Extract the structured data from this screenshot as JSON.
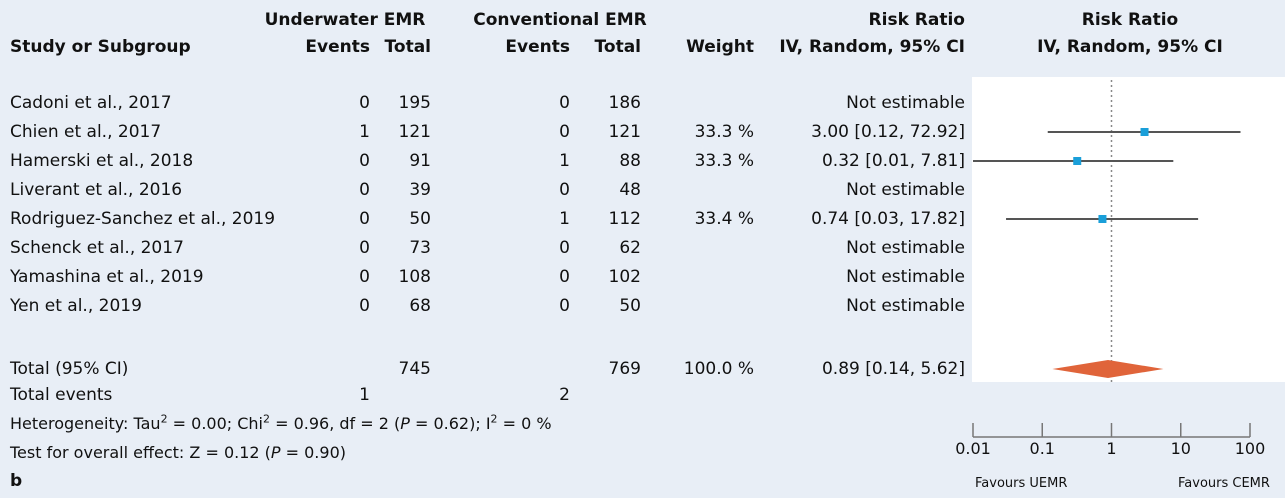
{
  "header": {
    "uemr_group": "Underwater EMR",
    "cemr_group": "Conventional EMR",
    "rr_title": "Risk Ratio",
    "rr_title2": "Risk Ratio",
    "study_col": "Study or Subgroup",
    "events1": "Events",
    "total1": "Total",
    "events2": "Events",
    "total2": "Total",
    "weight": "Weight",
    "rr_method": "IV, Random, 95% CI",
    "rr_method2": "IV, Random, 95% CI"
  },
  "studies": [
    {
      "name": "Cadoni et al., 2017",
      "e1": "0",
      "t1": "195",
      "e2": "0",
      "t2": "186",
      "weight": "",
      "rr": "Not estimable"
    },
    {
      "name": "Chien et al., 2017",
      "e1": "1",
      "t1": "121",
      "e2": "0",
      "t2": "121",
      "weight": "33.3 %",
      "rr": "3.00 [0.12, 72.92]"
    },
    {
      "name": "Hamerski et al., 2018",
      "e1": "0",
      "t1": "91",
      "e2": "1",
      "t2": "88",
      "weight": "33.3 %",
      "rr": "0.32 [0.01, 7.81]"
    },
    {
      "name": "Liverant et al., 2016",
      "e1": "0",
      "t1": "39",
      "e2": "0",
      "t2": "48",
      "weight": "",
      "rr": "Not estimable"
    },
    {
      "name": "Rodriguez-Sanchez et al., 2019",
      "e1": "0",
      "t1": "50",
      "e2": "1",
      "t2": "112",
      "weight": "33.4 %",
      "rr": "0.74 [0.03, 17.82]"
    },
    {
      "name": "Schenck et al., 2017",
      "e1": "0",
      "t1": "73",
      "e2": "0",
      "t2": "62",
      "weight": "",
      "rr": "Not estimable"
    },
    {
      "name": "Yamashina et al., 2019",
      "e1": "0",
      "t1": "108",
      "e2": "0",
      "t2": "102",
      "weight": "",
      "rr": "Not estimable"
    },
    {
      "name": "Yen et al., 2019",
      "e1": "0",
      "t1": "68",
      "e2": "0",
      "t2": "50",
      "weight": "",
      "rr": "Not estimable"
    }
  ],
  "total": {
    "label": "Total (95% CI)",
    "t1": "745",
    "t2": "769",
    "weight": "100.0 %",
    "rr": "0.89 [0.14, 5.62]"
  },
  "total_events": {
    "label": "Total events",
    "e1": "1",
    "e2": "2"
  },
  "heterogeneity": {
    "prefix": "Heterogeneity: Tau",
    "sup1": "2",
    "mid1": " = 0.00; Chi",
    "sup2": "2",
    "mid2": " = 0.96, df = 2 (",
    "p": "P",
    "mid3": " = 0.62); I",
    "sup3": "2",
    "suffix": " = 0 %"
  },
  "overall": {
    "prefix": "Test for overall effect: Z = 0.12 (",
    "p": "P",
    "suffix": " = 0.90)"
  },
  "panel_label": "b",
  "axis": {
    "ticks": [
      "0.01",
      "0.1",
      "1",
      "10",
      "100"
    ],
    "favours_left": "Favours UEMR",
    "favours_right": "Favours CEMR"
  },
  "colors": {
    "point": "#1a9fd9",
    "line": "#555555",
    "diamond": "#e0643a",
    "ref": "#888888",
    "panel_bg": "#e8eef6"
  },
  "chart_data": {
    "type": "forest",
    "scale": "log",
    "xlim": [
      0.01,
      100
    ],
    "reference": 1,
    "points": [
      {
        "study": "Chien et al., 2017",
        "rr": 3.0,
        "lo": 0.12,
        "hi": 72.92
      },
      {
        "study": "Hamerski et al., 2018",
        "rr": 0.32,
        "lo": 0.01,
        "hi": 7.81
      },
      {
        "study": "Rodriguez-Sanchez et al., 2019",
        "rr": 0.74,
        "lo": 0.03,
        "hi": 17.82
      }
    ],
    "summary": {
      "rr": 0.89,
      "lo": 0.14,
      "hi": 5.62
    }
  }
}
